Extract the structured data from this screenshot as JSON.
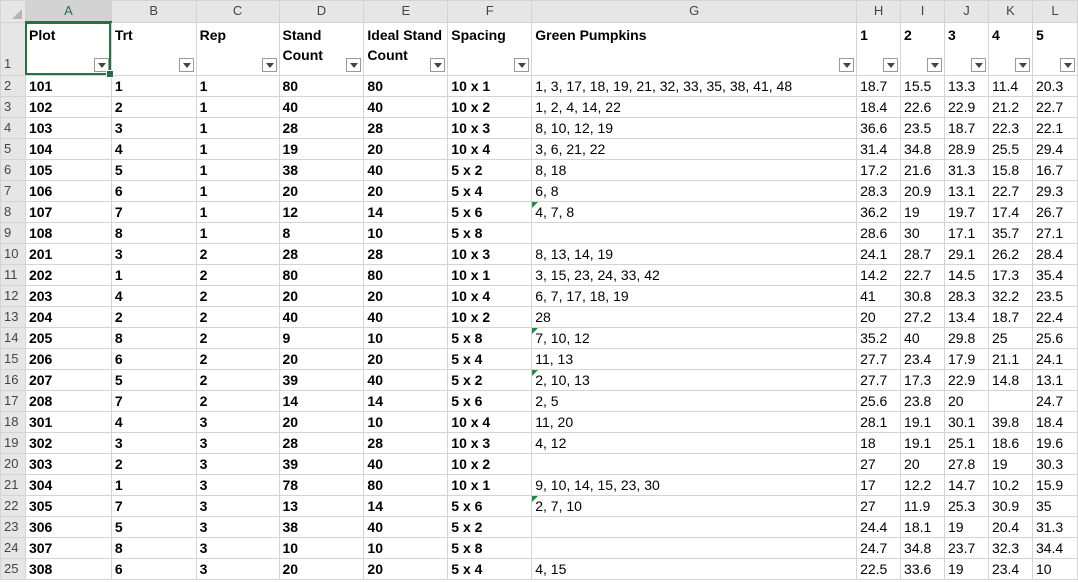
{
  "colors": {
    "accent": "#217346",
    "error_indicator": "#1e8c3a"
  },
  "column_letters": [
    "A",
    "B",
    "C",
    "D",
    "E",
    "F",
    "G",
    "H",
    "I",
    "J",
    "K",
    "L"
  ],
  "selected_column": "A",
  "header_row_number": "1",
  "headers": [
    "Plot",
    "Trt",
    "Rep",
    "Stand Count",
    "Ideal Stand Count",
    "Spacing",
    "Green Pumpkins",
    "1",
    "2",
    "3",
    "4",
    "5"
  ],
  "rows": [
    {
      "n": "2",
      "c": [
        "101",
        "1",
        "1",
        "80",
        "80",
        "10 x 1",
        "1, 3, 17, 18, 19, 21, 32, 33, 35, 38, 41, 48",
        "18.7",
        "15.5",
        "13.3",
        "11.4",
        "20.3"
      ],
      "flag": false
    },
    {
      "n": "3",
      "c": [
        "102",
        "2",
        "1",
        "40",
        "40",
        "10 x 2",
        "1, 2, 4, 14, 22",
        "18.4",
        "22.6",
        "22.9",
        "21.2",
        "22.7"
      ],
      "flag": false
    },
    {
      "n": "4",
      "c": [
        "103",
        "3",
        "1",
        "28",
        "28",
        "10 x 3",
        "8, 10, 12, 19",
        "36.6",
        "23.5",
        "18.7",
        "22.3",
        "22.1"
      ],
      "flag": false
    },
    {
      "n": "5",
      "c": [
        "104",
        "4",
        "1",
        "19",
        "20",
        "10 x 4",
        "3, 6, 21, 22",
        "31.4",
        "34.8",
        "28.9",
        "25.5",
        "29.4"
      ],
      "flag": false
    },
    {
      "n": "6",
      "c": [
        "105",
        "5",
        "1",
        "38",
        "40",
        "5 x 2",
        "8, 18",
        "17.2",
        "21.6",
        "31.3",
        "15.8",
        "16.7"
      ],
      "flag": false
    },
    {
      "n": "7",
      "c": [
        "106",
        "6",
        "1",
        "20",
        "20",
        "5 x 4",
        "6, 8",
        "28.3",
        "20.9",
        "13.1",
        "22.7",
        "29.3"
      ],
      "flag": false
    },
    {
      "n": "8",
      "c": [
        "107",
        "7",
        "1",
        "12",
        "14",
        "5 x 6",
        "4, 7, 8",
        "36.2",
        "19",
        "19.7",
        "17.4",
        "26.7"
      ],
      "flag": true
    },
    {
      "n": "9",
      "c": [
        "108",
        "8",
        "1",
        "8",
        "10",
        "5 x 8",
        "",
        "28.6",
        "30",
        "17.1",
        "35.7",
        "27.1"
      ],
      "flag": false
    },
    {
      "n": "10",
      "c": [
        "201",
        "3",
        "2",
        "28",
        "28",
        "10 x 3",
        "8, 13, 14, 19",
        "24.1",
        "28.7",
        "29.1",
        "26.2",
        "28.4"
      ],
      "flag": false
    },
    {
      "n": "11",
      "c": [
        "202",
        "1",
        "2",
        "80",
        "80",
        "10 x 1",
        "3, 15, 23, 24, 33, 42",
        "14.2",
        "22.7",
        "14.5",
        "17.3",
        "35.4"
      ],
      "flag": false
    },
    {
      "n": "12",
      "c": [
        "203",
        "4",
        "2",
        "20",
        "20",
        "10 x 4",
        "6, 7, 17, 18, 19",
        "41",
        "30.8",
        "28.3",
        "32.2",
        "23.5"
      ],
      "flag": false
    },
    {
      "n": "13",
      "c": [
        "204",
        "2",
        "2",
        "40",
        "40",
        "10 x 2",
        "28",
        "20",
        "27.2",
        "13.4",
        "18.7",
        "22.4"
      ],
      "flag": false
    },
    {
      "n": "14",
      "c": [
        "205",
        "8",
        "2",
        "9",
        "10",
        "5 x 8",
        "7, 10, 12",
        "35.2",
        "40",
        "29.8",
        "25",
        "25.6"
      ],
      "flag": true
    },
    {
      "n": "15",
      "c": [
        "206",
        "6",
        "2",
        "20",
        "20",
        "5 x 4",
        "11, 13",
        "27.7",
        "23.4",
        "17.9",
        "21.1",
        "24.1"
      ],
      "flag": false
    },
    {
      "n": "16",
      "c": [
        "207",
        "5",
        "2",
        "39",
        "40",
        "5 x 2",
        "2, 10, 13",
        "27.7",
        "17.3",
        "22.9",
        "14.8",
        "13.1"
      ],
      "flag": true
    },
    {
      "n": "17",
      "c": [
        "208",
        "7",
        "2",
        "14",
        "14",
        "5 x 6",
        "2, 5",
        "25.6",
        "23.8",
        "20",
        "",
        "24.7"
      ],
      "flag": false
    },
    {
      "n": "18",
      "c": [
        "301",
        "4",
        "3",
        "20",
        "10",
        "10 x 4",
        "11, 20",
        "28.1",
        "19.1",
        "30.1",
        "39.8",
        "18.4"
      ],
      "flag": false
    },
    {
      "n": "19",
      "c": [
        "302",
        "3",
        "3",
        "28",
        "28",
        "10 x 3",
        "4, 12",
        "18",
        "19.1",
        "25.1",
        "18.6",
        "19.6"
      ],
      "flag": false
    },
    {
      "n": "20",
      "c": [
        "303",
        "2",
        "3",
        "39",
        "40",
        "10 x 2",
        "",
        "27",
        "20",
        "27.8",
        "19",
        "30.3"
      ],
      "flag": false
    },
    {
      "n": "21",
      "c": [
        "304",
        "1",
        "3",
        "78",
        "80",
        "10 x 1",
        "9, 10, 14, 15, 23, 30",
        "17",
        "12.2",
        "14.7",
        "10.2",
        "15.9"
      ],
      "flag": false
    },
    {
      "n": "22",
      "c": [
        "305",
        "7",
        "3",
        "13",
        "14",
        "5 x 6",
        "2, 7, 10",
        "27",
        "11.9",
        "25.3",
        "30.9",
        "35"
      ],
      "flag": true
    },
    {
      "n": "23",
      "c": [
        "306",
        "5",
        "3",
        "38",
        "40",
        "5 x 2",
        "",
        "24.4",
        "18.1",
        "19",
        "20.4",
        "31.3"
      ],
      "flag": false
    },
    {
      "n": "24",
      "c": [
        "307",
        "8",
        "3",
        "10",
        "10",
        "5 x 8",
        "",
        "24.7",
        "34.8",
        "23.7",
        "32.3",
        "34.4"
      ],
      "flag": false
    },
    {
      "n": "25",
      "c": [
        "308",
        "6",
        "3",
        "20",
        "20",
        "5 x 4",
        "4, 15",
        "22.5",
        "33.6",
        "19",
        "23.4",
        "10"
      ],
      "flag": false
    }
  ]
}
